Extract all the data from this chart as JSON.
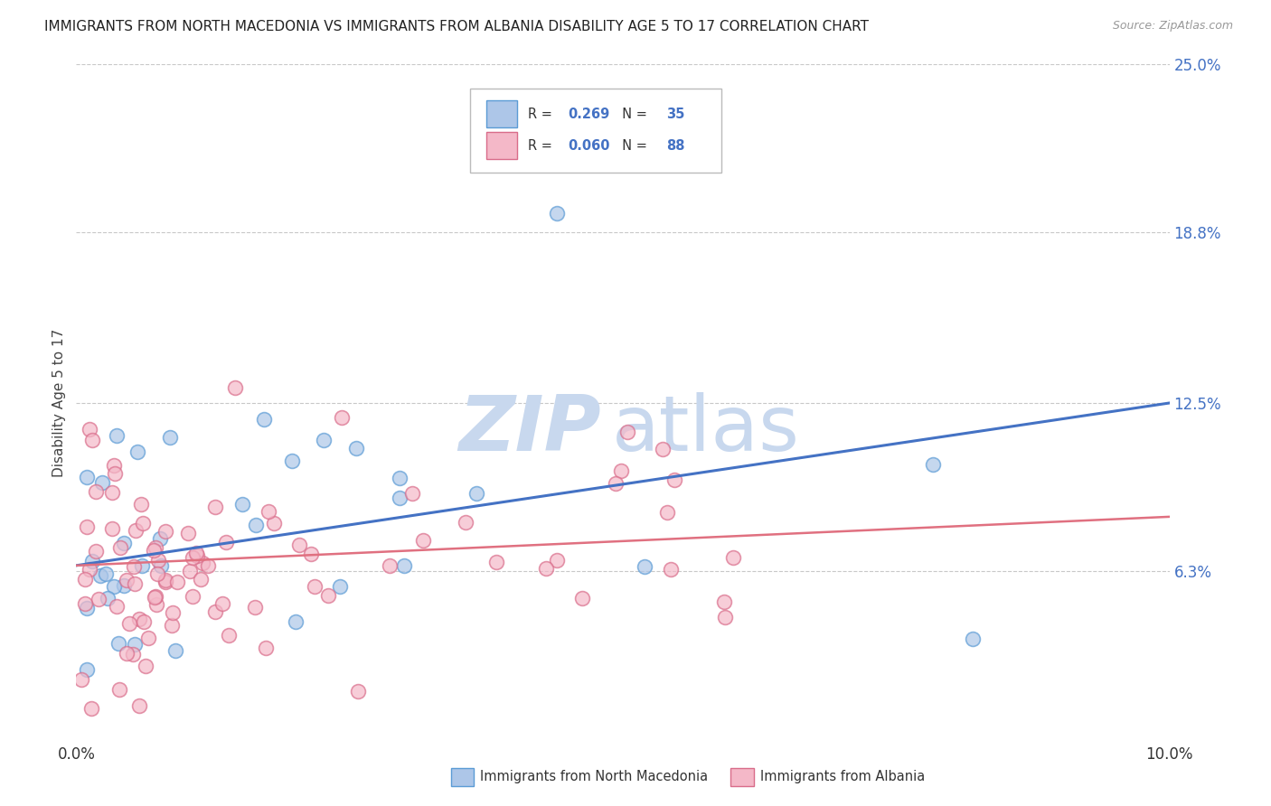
{
  "title": "IMMIGRANTS FROM NORTH MACEDONIA VS IMMIGRANTS FROM ALBANIA DISABILITY AGE 5 TO 17 CORRELATION CHART",
  "source": "Source: ZipAtlas.com",
  "ylabel": "Disability Age 5 to 17",
  "x_min": 0.0,
  "x_max": 0.1,
  "y_min": 0.0,
  "y_max": 0.25,
  "y_ticks": [
    0.063,
    0.125,
    0.188,
    0.25
  ],
  "y_tick_labels": [
    "6.3%",
    "12.5%",
    "18.8%",
    "25.0%"
  ],
  "x_ticks": [
    0.0,
    0.1
  ],
  "x_tick_labels": [
    "0.0%",
    "10.0%"
  ],
  "series1_color": "#adc6e8",
  "series1_edge": "#5b9bd5",
  "series1_line_color": "#4472c4",
  "series2_color": "#f4b8c8",
  "series2_edge": "#d96c8a",
  "series2_line_color": "#e07080",
  "background_color": "#ffffff",
  "grid_color": "#c8c8c8",
  "title_color": "#222222",
  "axis_label_color": "#444444",
  "tick_label_color": "#4472c4",
  "watermark_zip": "ZIP",
  "watermark_atlas": "atlas",
  "watermark_color_zip": "#c8d8ee",
  "watermark_color_atlas": "#c8d8ee",
  "legend_label1": "R =  0.269   N = 35",
  "legend_label2": "R =  0.060   N = 88",
  "legend_r1": "0.269",
  "legend_n1": "35",
  "legend_r2": "0.060",
  "legend_n2": "88",
  "legend_color1": "#4472c4",
  "legend_color2": "#4472c4",
  "bottom_label1": "Immigrants from North Macedonia",
  "bottom_label2": "Immigrants from Albania",
  "trend1_x0": 0.0,
  "trend1_y0": 0.065,
  "trend1_x1": 0.1,
  "trend1_y1": 0.125,
  "trend2_x0": 0.0,
  "trend2_y0": 0.065,
  "trend2_x1": 0.1,
  "trend2_y1": 0.083
}
